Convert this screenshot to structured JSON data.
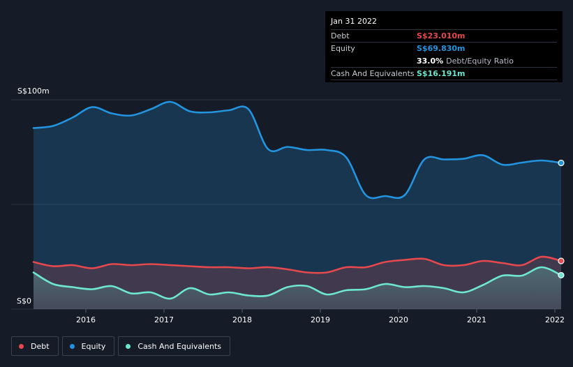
{
  "tooltip": {
    "date": "Jan 31 2022",
    "rows": {
      "debt": {
        "label": "Debt",
        "value": "S$23.010m"
      },
      "equity": {
        "label": "Equity",
        "value": "S$69.830m"
      },
      "ratio": {
        "pct": "33.0%",
        "label": "Debt/Equity Ratio"
      },
      "cash": {
        "label": "Cash And Equivalents",
        "value": "S$16.191m"
      }
    }
  },
  "legend": {
    "debt": "Debt",
    "equity": "Equity",
    "cash": "Cash And Equivalents"
  },
  "colors": {
    "debt": "#e5484d",
    "equity": "#2394df",
    "cash": "#6ee7d0",
    "background": "#151b27"
  },
  "chart_data": {
    "type": "area",
    "title": "",
    "xlabel": "",
    "ylabel": "",
    "ylim": [
      0,
      100
    ],
    "xlim": [
      2015.33,
      2022.08
    ],
    "y_tick_labels": [
      "S$100m",
      "S$0"
    ],
    "x_tick_labels": [
      "2016",
      "2017",
      "2018",
      "2019",
      "2020",
      "2021",
      "2022"
    ],
    "x_ticks": [
      2016,
      2017,
      2018,
      2019,
      2020,
      2021,
      2022
    ],
    "grid": true,
    "series": [
      {
        "name": "Equity",
        "key": "equity",
        "x": [
          2015.33,
          2015.58,
          2015.83,
          2016.08,
          2016.33,
          2016.58,
          2016.83,
          2017.08,
          2017.33,
          2017.58,
          2017.83,
          2018.08,
          2018.33,
          2018.58,
          2018.83,
          2019.08,
          2019.33,
          2019.58,
          2019.83,
          2020.08,
          2020.33,
          2020.58,
          2020.83,
          2021.08,
          2021.33,
          2021.58,
          2021.83,
          2022.08
        ],
        "values": [
          86.5,
          87.5,
          91.5,
          96.5,
          93.5,
          92.5,
          95.5,
          99.0,
          94.5,
          94.0,
          95.0,
          95.5,
          76.5,
          77.5,
          76.0,
          76.0,
          72.5,
          54.5,
          54.0,
          54.5,
          71.5,
          71.5,
          71.8,
          73.5,
          69.0,
          70.0,
          71.0,
          69.83
        ]
      },
      {
        "name": "Debt",
        "key": "debt",
        "x": [
          2015.33,
          2015.58,
          2015.83,
          2016.08,
          2016.33,
          2016.58,
          2016.83,
          2017.08,
          2017.33,
          2017.58,
          2017.83,
          2018.08,
          2018.33,
          2018.58,
          2018.83,
          2019.08,
          2019.33,
          2019.58,
          2019.83,
          2020.08,
          2020.33,
          2020.58,
          2020.83,
          2021.08,
          2021.33,
          2021.58,
          2021.83,
          2022.08
        ],
        "values": [
          22.5,
          20.5,
          21.0,
          19.5,
          21.5,
          21.0,
          21.5,
          21.0,
          20.5,
          20.0,
          20.0,
          19.5,
          20.0,
          19.0,
          17.5,
          17.5,
          20.0,
          20.0,
          22.5,
          23.5,
          24.0,
          21.0,
          21.0,
          23.0,
          22.0,
          21.0,
          25.0,
          23.01
        ]
      },
      {
        "name": "Cash And Equivalents",
        "key": "cash",
        "x": [
          2015.33,
          2015.58,
          2015.83,
          2016.08,
          2016.33,
          2016.58,
          2016.83,
          2017.08,
          2017.33,
          2017.58,
          2017.83,
          2018.08,
          2018.33,
          2018.58,
          2018.83,
          2019.08,
          2019.33,
          2019.58,
          2019.83,
          2020.08,
          2020.33,
          2020.58,
          2020.83,
          2021.08,
          2021.33,
          2021.58,
          2021.83,
          2022.08
        ],
        "values": [
          17.5,
          12.0,
          10.5,
          9.5,
          11.0,
          7.5,
          8.0,
          5.0,
          10.0,
          7.0,
          8.0,
          6.5,
          6.5,
          10.5,
          11.0,
          7.0,
          9.0,
          9.5,
          12.0,
          10.5,
          11.0,
          10.0,
          8.0,
          11.5,
          16.0,
          16.0,
          20.0,
          16.191
        ]
      }
    ]
  }
}
